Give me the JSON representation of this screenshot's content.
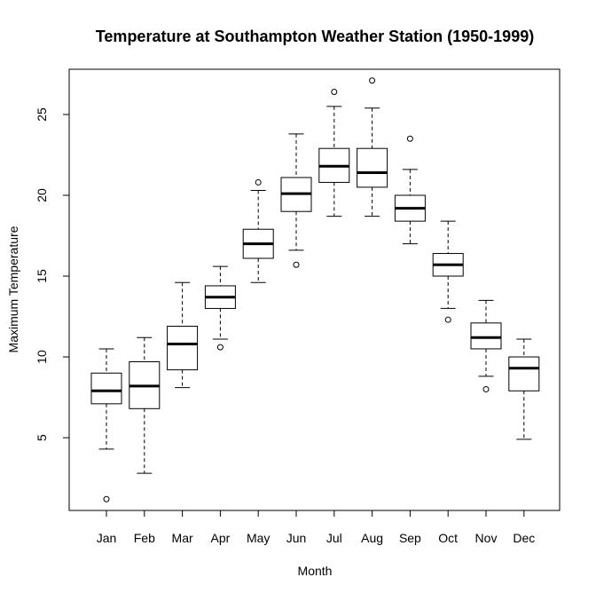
{
  "chart_data": {
    "type": "boxplot",
    "title": "Temperature at Southampton Weather Station (1950-1999)",
    "xlabel": "Month",
    "ylabel": "Maximum Temperature",
    "categories": [
      "Jan",
      "Feb",
      "Mar",
      "Apr",
      "May",
      "Jun",
      "Jul",
      "Aug",
      "Sep",
      "Oct",
      "Nov",
      "Dec"
    ],
    "y_ticks": [
      "5",
      "10",
      "15",
      "20",
      "25"
    ],
    "ylim": [
      0.5,
      27.8
    ],
    "grid": false,
    "legend": "none",
    "boxes": [
      {
        "month": "Jan",
        "whisker_low": 4.3,
        "q1": 7.1,
        "median": 7.9,
        "q3": 9.0,
        "whisker_high": 10.5,
        "outliers": [
          1.2
        ]
      },
      {
        "month": "Feb",
        "whisker_low": 2.8,
        "q1": 6.8,
        "median": 8.2,
        "q3": 9.7,
        "whisker_high": 11.2,
        "outliers": []
      },
      {
        "month": "Mar",
        "whisker_low": 8.1,
        "q1": 9.2,
        "median": 10.8,
        "q3": 11.9,
        "whisker_high": 14.6,
        "outliers": []
      },
      {
        "month": "Apr",
        "whisker_low": 11.1,
        "q1": 13.0,
        "median": 13.7,
        "q3": 14.4,
        "whisker_high": 15.6,
        "outliers": [
          10.6
        ]
      },
      {
        "month": "May",
        "whisker_low": 14.6,
        "q1": 16.1,
        "median": 17.0,
        "q3": 17.9,
        "whisker_high": 20.3,
        "outliers": [
          20.8
        ]
      },
      {
        "month": "Jun",
        "whisker_low": 16.6,
        "q1": 19.0,
        "median": 20.1,
        "q3": 21.1,
        "whisker_high": 23.8,
        "outliers": [
          15.7
        ]
      },
      {
        "month": "Jul",
        "whisker_low": 18.7,
        "q1": 20.8,
        "median": 21.8,
        "q3": 22.9,
        "whisker_high": 25.5,
        "outliers": [
          26.4
        ]
      },
      {
        "month": "Aug",
        "whisker_low": 18.7,
        "q1": 20.5,
        "median": 21.4,
        "q3": 22.9,
        "whisker_high": 25.4,
        "outliers": [
          27.1
        ]
      },
      {
        "month": "Sep",
        "whisker_low": 17.0,
        "q1": 18.4,
        "median": 19.2,
        "q3": 20.0,
        "whisker_high": 21.6,
        "outliers": [
          23.5
        ]
      },
      {
        "month": "Oct",
        "whisker_low": 13.0,
        "q1": 15.0,
        "median": 15.7,
        "q3": 16.4,
        "whisker_high": 18.4,
        "outliers": [
          12.3
        ]
      },
      {
        "month": "Nov",
        "whisker_low": 8.8,
        "q1": 10.5,
        "median": 11.2,
        "q3": 12.1,
        "whisker_high": 13.5,
        "outliers": [
          8.0
        ]
      },
      {
        "month": "Dec",
        "whisker_low": 4.9,
        "q1": 7.9,
        "median": 9.3,
        "q3": 10.0,
        "whisker_high": 11.1,
        "outliers": []
      }
    ],
    "colors": {
      "stroke": "#000000",
      "box_fill": "#ffffff",
      "background": "#ffffff"
    }
  }
}
